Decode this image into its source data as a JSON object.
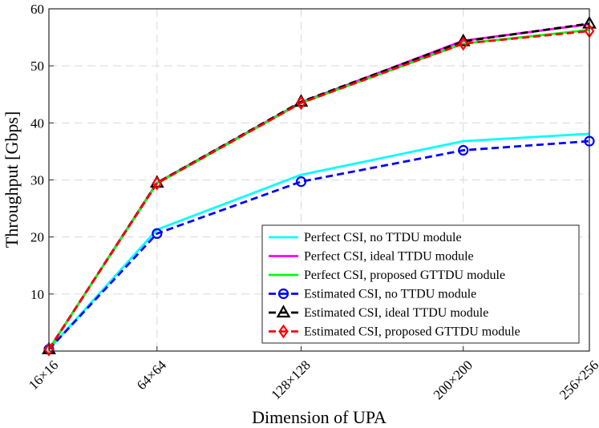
{
  "chart_data": {
    "type": "line",
    "title": "",
    "xlabel": "Dimension of UPA",
    "ylabel": "Throughput [Gbps]",
    "categories": [
      "16×16",
      "64×64",
      "128×128",
      "200×200",
      "256×256"
    ],
    "x": [
      16,
      64,
      128,
      200,
      256
    ],
    "xlim": [
      16,
      256
    ],
    "ylim": [
      0,
      60
    ],
    "yticks": [
      10,
      20,
      30,
      40,
      50,
      60
    ],
    "grid": true,
    "legend_position": "bottom-right",
    "series": [
      {
        "name": "Perfect CSI, no TTDU module",
        "color": "#00FFFF",
        "style": "solid",
        "marker": "none",
        "values": [
          0.3,
          21.3,
          30.9,
          36.8,
          38.1
        ]
      },
      {
        "name": "Perfect CSI, ideal TTDU module",
        "color": "#FF00FF",
        "style": "solid",
        "marker": "none",
        "values": [
          0.3,
          29.5,
          43.6,
          54.4,
          57.3
        ]
      },
      {
        "name": "Perfect CSI, proposed GTTDU module",
        "color": "#00FF00",
        "style": "solid",
        "marker": "none",
        "values": [
          0.3,
          29.4,
          43.5,
          53.9,
          56.3
        ]
      },
      {
        "name": "Estimated CSI, no TTDU module",
        "color": "#0000FF",
        "style": "dashed",
        "marker": "circle",
        "values": [
          0.3,
          20.6,
          29.7,
          35.2,
          36.8
        ]
      },
      {
        "name": "Estimated CSI, ideal TTDU module",
        "color": "#000000",
        "style": "dashed",
        "marker": "triangle",
        "values": [
          0.3,
          29.5,
          43.7,
          54.3,
          57.4
        ]
      },
      {
        "name": "Estimated CSI, proposed GTTDU module",
        "color": "#FF0000",
        "style": "dashed",
        "marker": "diamond",
        "values": [
          0.3,
          29.4,
          43.5,
          53.9,
          56.1
        ]
      }
    ]
  }
}
